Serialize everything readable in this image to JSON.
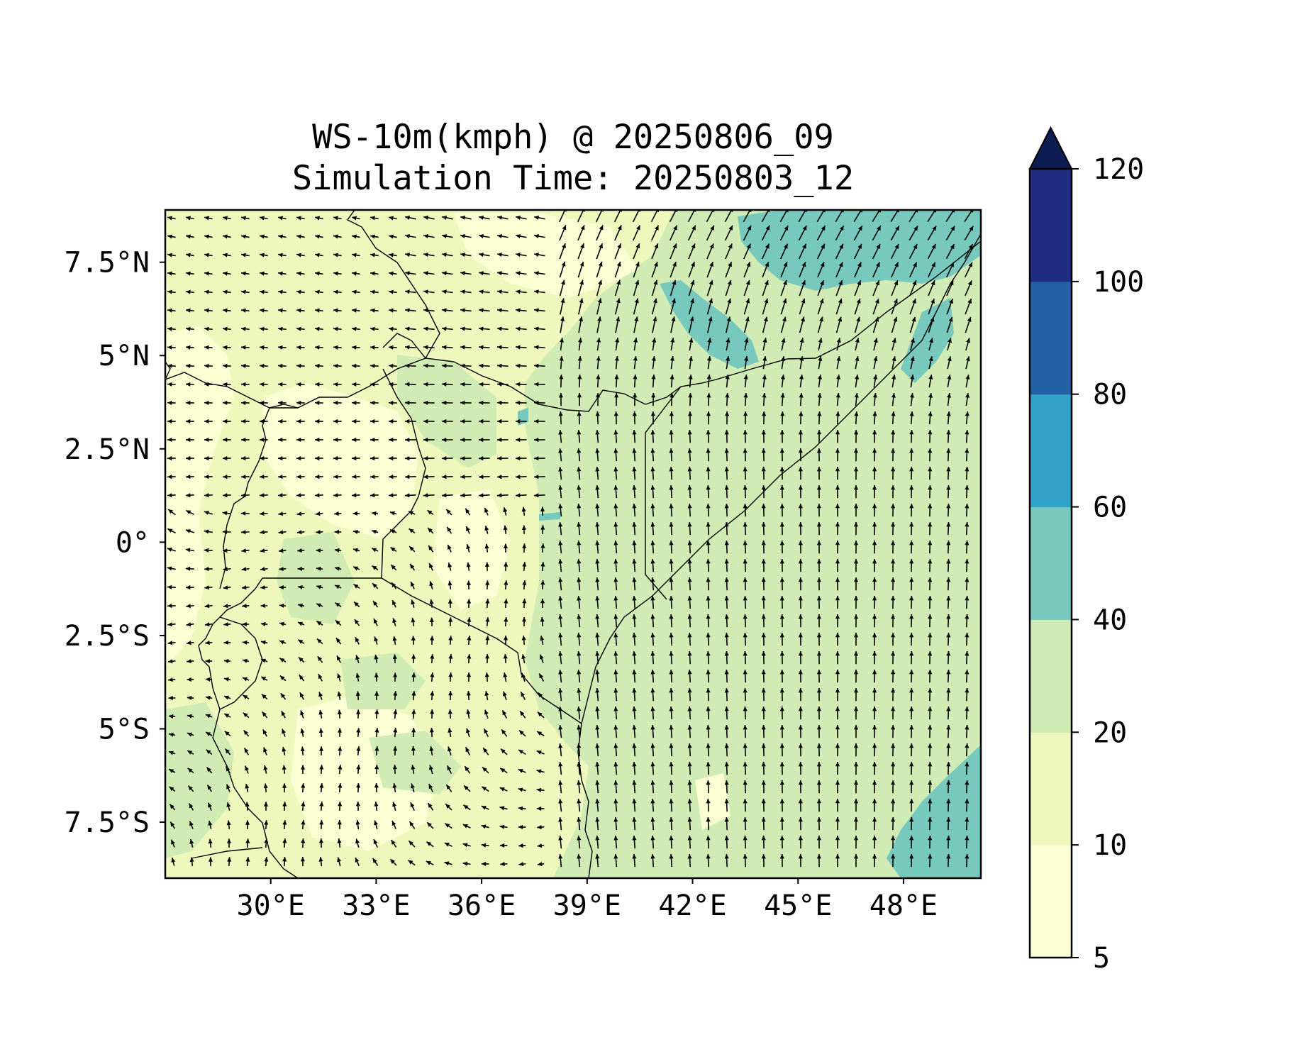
{
  "title": "WS-10m(kmph) @ 20250806_09",
  "subtitle": "Simulation Time: 20250803_12",
  "map": {
    "lon_range": [
      27,
      50.2
    ],
    "lat_range": [
      -9,
      8.9
    ],
    "lon_ticks": [
      "30°E",
      "33°E",
      "36°E",
      "39°E",
      "42°E",
      "45°E",
      "48°E"
    ],
    "lon_tick_values": [
      30,
      33,
      36,
      39,
      42,
      45,
      48
    ],
    "lat_ticks": [
      "7.5°N",
      "5°N",
      "2.5°N",
      "0°",
      "2.5°S",
      "5°S",
      "7.5°S"
    ],
    "lat_tick_values": [
      7.5,
      5,
      2.5,
      0,
      -2.5,
      -5,
      -7.5
    ],
    "field": "10 m wind speed (kmph) with wind direction vectors",
    "background_color": "#d0ebb3"
  },
  "colorbar": {
    "levels": [
      5,
      10,
      20,
      40,
      60,
      80,
      100,
      120
    ],
    "tick_labels": [
      "5",
      "10",
      "20",
      "40",
      "60",
      "80",
      "100",
      "120"
    ],
    "colors": [
      "#fbfdd3",
      "#eef8bd",
      "#d0ebb3",
      "#77c8bd",
      "#32a2c9",
      "#2460a6",
      "#1e2d82"
    ],
    "extend_color": "#0e1e55",
    "extend": "max"
  }
}
